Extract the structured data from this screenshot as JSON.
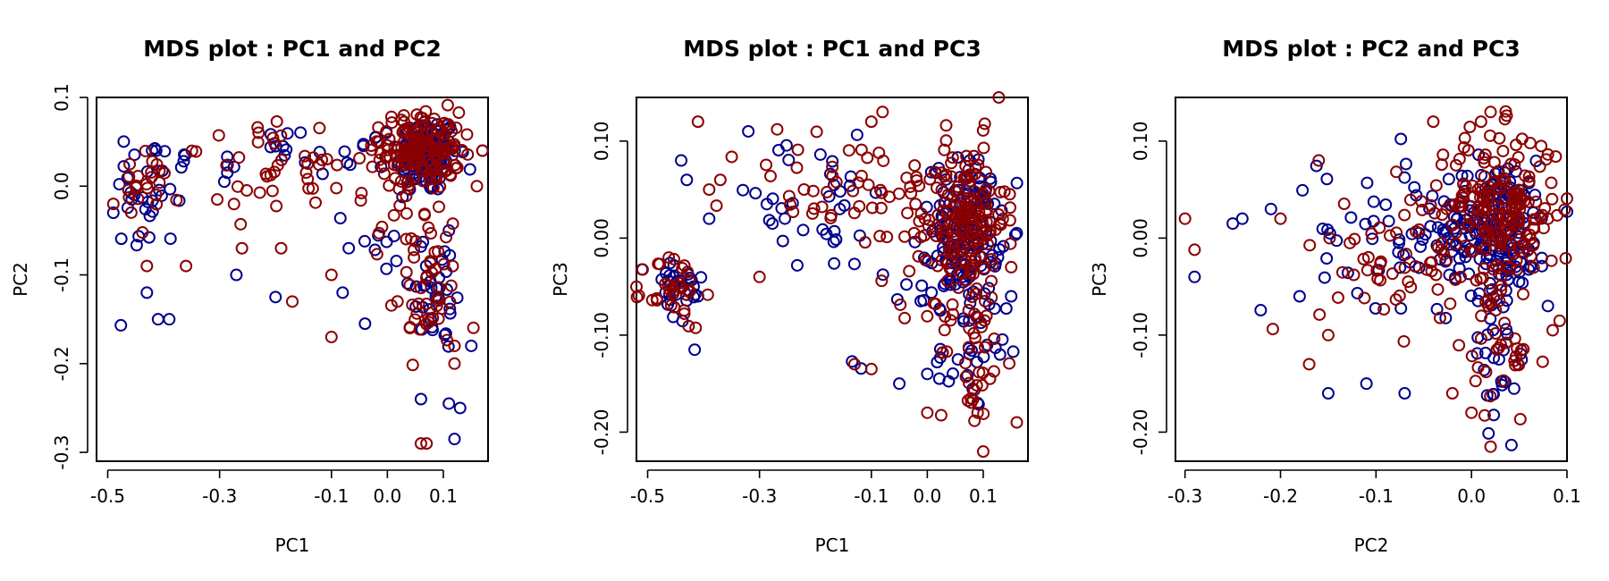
{
  "chart_data": [
    {
      "type": "scatter",
      "title": "MDS plot : PC1 and PC2",
      "xlabel": "PC1",
      "ylabel": "PC2",
      "xlim": [
        -0.52,
        0.18
      ],
      "ylim": [
        -0.31,
        0.1
      ],
      "xticks": [
        -0.5,
        -0.3,
        -0.1,
        0.0,
        0.1
      ],
      "xtick_labels": [
        "-0.5",
        "-0.3",
        "-0.1",
        "0.0",
        "0.1"
      ],
      "yticks": [
        -0.3,
        -0.2,
        -0.1,
        0.0,
        0.1
      ],
      "ytick_labels": [
        "-0.3",
        "-0.2",
        "-0.1",
        "0.0",
        "0.1"
      ],
      "series": [
        {
          "color": "#00008B",
          "clusters": [
            {
              "cx": 0.07,
              "cy": 0.035,
              "sx": 0.028,
              "sy": 0.022,
              "n": 130
            },
            {
              "cx": 0.09,
              "cy": -0.12,
              "sx": 0.025,
              "sy": 0.035,
              "n": 30
            },
            {
              "cx": -0.43,
              "cy": -0.01,
              "sx": 0.03,
              "sy": 0.035,
              "n": 28
            },
            {
              "cx": -0.2,
              "cy": 0.03,
              "sx": 0.11,
              "sy": 0.02,
              "n": 30
            },
            {
              "cx": 0.0,
              "cy": -0.05,
              "sx": 0.06,
              "sy": 0.04,
              "n": 15
            }
          ],
          "points": [
            [
              -0.49,
              -0.03
            ],
            [
              -0.41,
              -0.15
            ],
            [
              -0.39,
              -0.15
            ],
            [
              -0.27,
              -0.1
            ],
            [
              -0.2,
              -0.125
            ],
            [
              0.06,
              -0.24
            ],
            [
              0.11,
              -0.245
            ],
            [
              0.12,
              -0.285
            ],
            [
              0.13,
              -0.25
            ],
            [
              0.15,
              -0.18
            ],
            [
              -0.04,
              -0.155
            ],
            [
              -0.08,
              -0.12
            ],
            [
              0.11,
              -0.05
            ],
            [
              -0.43,
              -0.12
            ],
            [
              0.17,
              0.04
            ]
          ]
        },
        {
          "color": "#8B0000",
          "clusters": [
            {
              "cx": 0.06,
              "cy": 0.04,
              "sx": 0.035,
              "sy": 0.022,
              "n": 150
            },
            {
              "cx": 0.07,
              "cy": -0.12,
              "sx": 0.03,
              "sy": 0.035,
              "n": 40
            },
            {
              "cx": -0.15,
              "cy": 0.02,
              "sx": 0.12,
              "sy": 0.025,
              "n": 55
            },
            {
              "cx": -0.43,
              "cy": -0.01,
              "sx": 0.03,
              "sy": 0.025,
              "n": 20
            },
            {
              "cx": 0.04,
              "cy": -0.05,
              "sx": 0.04,
              "sy": 0.04,
              "n": 15
            }
          ],
          "points": [
            [
              -0.43,
              -0.09
            ],
            [
              -0.36,
              -0.09
            ],
            [
              -0.26,
              -0.07
            ],
            [
              -0.19,
              -0.07
            ],
            [
              -0.17,
              -0.13
            ],
            [
              -0.1,
              -0.17
            ],
            [
              -0.1,
              -0.1
            ],
            [
              0.06,
              -0.29
            ],
            [
              0.07,
              -0.29
            ],
            [
              0.12,
              -0.2
            ],
            [
              0.12,
              -0.18
            ],
            [
              0.16,
              0.0
            ],
            [
              0.17,
              0.04
            ],
            [
              -0.49,
              -0.02
            ]
          ]
        }
      ]
    },
    {
      "type": "scatter",
      "title": "MDS plot : PC1 and PC3",
      "xlabel": "PC1",
      "ylabel": "PC3",
      "xlim": [
        -0.52,
        0.18
      ],
      "ylim": [
        -0.23,
        0.145
      ],
      "xticks": [
        -0.5,
        -0.3,
        -0.1,
        0.0,
        0.1
      ],
      "xtick_labels": [
        "-0.5",
        "-0.3",
        "-0.1",
        "0.0",
        "0.1"
      ],
      "yticks": [
        -0.2,
        -0.1,
        0.0,
        0.1
      ],
      "ytick_labels": [
        "-0.20",
        "-0.10",
        "0.00",
        "0.10"
      ],
      "series": [
        {
          "color": "#00008B",
          "clusters": [
            {
              "cx": 0.07,
              "cy": 0.01,
              "sx": 0.03,
              "sy": 0.035,
              "n": 140
            },
            {
              "cx": 0.08,
              "cy": -0.12,
              "sx": 0.03,
              "sy": 0.03,
              "n": 25
            },
            {
              "cx": -0.45,
              "cy": -0.055,
              "sx": 0.025,
              "sy": 0.02,
              "n": 30
            },
            {
              "cx": -0.2,
              "cy": 0.03,
              "sx": 0.1,
              "sy": 0.035,
              "n": 35
            },
            {
              "cx": -0.03,
              "cy": -0.05,
              "sx": 0.05,
              "sy": 0.04,
              "n": 15
            }
          ],
          "points": [
            [
              -0.44,
              0.08
            ],
            [
              -0.43,
              0.06
            ],
            [
              -0.41,
              -0.06
            ],
            [
              -0.32,
              0.11
            ],
            [
              -0.05,
              -0.15
            ],
            [
              0.0,
              -0.14
            ],
            [
              0.09,
              -0.17
            ],
            [
              0.13,
              -0.12
            ],
            [
              0.15,
              -0.06
            ],
            [
              -0.39,
              0.02
            ]
          ]
        },
        {
          "color": "#8B0000",
          "clusters": [
            {
              "cx": 0.07,
              "cy": 0.02,
              "sx": 0.035,
              "sy": 0.04,
              "n": 160
            },
            {
              "cx": 0.08,
              "cy": -0.12,
              "sx": 0.03,
              "sy": 0.04,
              "n": 40
            },
            {
              "cx": -0.45,
              "cy": -0.055,
              "sx": 0.025,
              "sy": 0.02,
              "n": 35
            },
            {
              "cx": -0.15,
              "cy": 0.05,
              "sx": 0.1,
              "sy": 0.03,
              "n": 50
            },
            {
              "cx": 0.0,
              "cy": -0.03,
              "sx": 0.05,
              "sy": 0.04,
              "n": 15
            }
          ],
          "points": [
            [
              -0.41,
              0.12
            ],
            [
              -0.39,
              0.05
            ],
            [
              -0.37,
              0.06
            ],
            [
              -0.3,
              -0.04
            ],
            [
              -0.13,
              -0.13
            ],
            [
              -0.1,
              -0.135
            ],
            [
              -0.1,
              0.12
            ],
            [
              -0.08,
              0.13
            ],
            [
              0.0,
              -0.18
            ],
            [
              0.1,
              -0.22
            ],
            [
              0.09,
              -0.18
            ],
            [
              0.16,
              -0.19
            ],
            [
              0.15,
              -0.03
            ]
          ]
        }
      ]
    },
    {
      "type": "scatter",
      "title": "MDS plot : PC2 and PC3",
      "xlabel": "PC2",
      "ylabel": "PC3",
      "xlim": [
        -0.31,
        0.1
      ],
      "ylim": [
        -0.23,
        0.145
      ],
      "xticks": [
        -0.3,
        -0.2,
        -0.1,
        0.0,
        0.1
      ],
      "xtick_labels": [
        "-0.3",
        "-0.2",
        "-0.1",
        "0.0",
        "0.1"
      ],
      "yticks": [
        -0.2,
        -0.1,
        0.0,
        0.1
      ],
      "ytick_labels": [
        "-0.20",
        "-0.10",
        "0.00",
        "0.10"
      ],
      "series": [
        {
          "color": "#00008B",
          "clusters": [
            {
              "cx": 0.025,
              "cy": 0.01,
              "sx": 0.03,
              "sy": 0.035,
              "n": 160
            },
            {
              "cx": -0.06,
              "cy": 0.01,
              "sx": 0.05,
              "sy": 0.04,
              "n": 60
            },
            {
              "cx": 0.03,
              "cy": -0.12,
              "sx": 0.015,
              "sy": 0.035,
              "n": 25
            }
          ],
          "points": [
            [
              -0.25,
              0.015
            ],
            [
              -0.24,
              0.02
            ],
            [
              -0.29,
              -0.04
            ],
            [
              -0.21,
              0.03
            ],
            [
              -0.15,
              -0.16
            ],
            [
              -0.11,
              -0.15
            ],
            [
              -0.07,
              -0.16
            ],
            [
              -0.18,
              -0.06
            ],
            [
              0.08,
              -0.07
            ]
          ]
        },
        {
          "color": "#8B0000",
          "clusters": [
            {
              "cx": 0.03,
              "cy": 0.03,
              "sx": 0.03,
              "sy": 0.04,
              "n": 180
            },
            {
              "cx": -0.06,
              "cy": -0.02,
              "sx": 0.05,
              "sy": 0.04,
              "n": 70
            },
            {
              "cx": 0.035,
              "cy": -0.13,
              "sx": 0.02,
              "sy": 0.04,
              "n": 30
            }
          ],
          "points": [
            [
              -0.3,
              0.02
            ],
            [
              -0.29,
              -0.012
            ],
            [
              -0.2,
              0.02
            ],
            [
              -0.17,
              -0.13
            ],
            [
              -0.16,
              0.08
            ],
            [
              -0.15,
              -0.1
            ],
            [
              -0.04,
              0.12
            ],
            [
              0.0,
              -0.18
            ],
            [
              0.02,
              -0.215
            ],
            [
              0.01,
              0.12
            ],
            [
              0.02,
              0.13
            ],
            [
              0.08,
              0.02
            ],
            [
              0.085,
              -0.095
            ],
            [
              -0.02,
              -0.16
            ]
          ]
        }
      ]
    }
  ]
}
